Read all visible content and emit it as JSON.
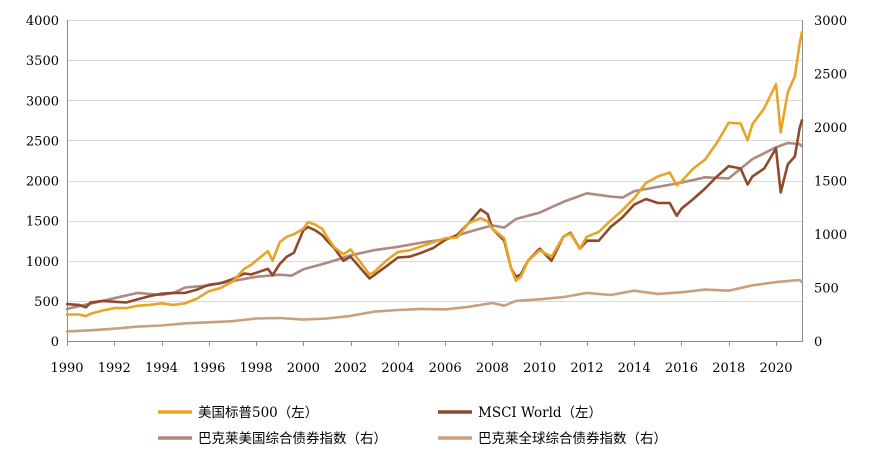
{
  "chart_data": {
    "type": "line",
    "x_range": [
      1990,
      2021.1
    ],
    "x_ticks": [
      1990,
      1992,
      1994,
      1996,
      1998,
      2000,
      2002,
      2004,
      2006,
      2008,
      2010,
      2012,
      2014,
      2016,
      2018,
      2020
    ],
    "x_tick_labels": [
      "1990",
      "1992",
      "1994",
      "1996",
      "1998",
      "2000",
      "2002",
      "2004",
      "2006",
      "2008",
      "2010",
      "2012",
      "2014",
      "2016",
      "2018",
      "2020"
    ],
    "y_left": {
      "range": [
        0,
        4000
      ],
      "ticks": [
        0,
        500,
        1000,
        1500,
        2000,
        2500,
        3000,
        3500,
        4000
      ],
      "tick_labels": [
        "0",
        "500",
        "1000",
        "1500",
        "2000",
        "2500",
        "3000",
        "3500",
        "4000"
      ]
    },
    "y_right": {
      "range": [
        0,
        3000
      ],
      "ticks": [
        0,
        500,
        1000,
        1500,
        2000,
        2500,
        3000
      ],
      "tick_labels": [
        "0",
        "500",
        "1000",
        "1500",
        "2000",
        "2500",
        "3000"
      ]
    },
    "grid": "horizontal",
    "legend_position": "bottom",
    "series": [
      {
        "name": "美国标普500（左）",
        "axis": "left",
        "color": "#E8A427",
        "x": [
          1990,
          1990.5,
          1990.8,
          1991,
          1991.5,
          1992,
          1992.5,
          1993,
          1993.5,
          1994,
          1994.5,
          1995,
          1995.5,
          1996,
          1996.5,
          1997,
          1997.5,
          1997.8,
          1998,
          1998.5,
          1998.7,
          1999,
          1999.3,
          1999.6,
          2000,
          2000.2,
          2000.5,
          2000.8,
          2001,
          2001.3,
          2001.7,
          2002,
          2002.5,
          2002.8,
          2003,
          2003.5,
          2004,
          2004.5,
          2005,
          2005.5,
          2006,
          2006.5,
          2007,
          2007.5,
          2007.8,
          2008,
          2008.5,
          2008.8,
          2009,
          2009.2,
          2009.5,
          2010,
          2010.5,
          2011,
          2011.3,
          2011.7,
          2012,
          2012.5,
          2013,
          2013.5,
          2014,
          2014.5,
          2015,
          2015.5,
          2015.8,
          2016,
          2016.5,
          2017,
          2017.5,
          2018,
          2018.5,
          2018.8,
          2019,
          2019.5,
          2020,
          2020.2,
          2020.5,
          2020.8,
          2021,
          2021.1
        ],
        "y": [
          330,
          330,
          310,
          340,
          380,
          410,
          410,
          440,
          450,
          470,
          450,
          470,
          530,
          620,
          660,
          740,
          900,
          950,
          1000,
          1120,
          1000,
          1230,
          1300,
          1330,
          1400,
          1480,
          1450,
          1400,
          1300,
          1170,
          1080,
          1140,
          950,
          830,
          860,
          1000,
          1110,
          1130,
          1180,
          1230,
          1280,
          1290,
          1470,
          1530,
          1490,
          1400,
          1280,
          900,
          750,
          800,
          1000,
          1130,
          1050,
          1300,
          1340,
          1150,
          1300,
          1360,
          1500,
          1630,
          1780,
          1970,
          2050,
          2100,
          1940,
          1990,
          2150,
          2260,
          2470,
          2720,
          2710,
          2500,
          2700,
          2900,
          3200,
          2600,
          3100,
          3300,
          3700,
          3850
        ]
      },
      {
        "name": "MSCI World（左）",
        "axis": "left",
        "color": "#8F4A2B",
        "x": [
          1990,
          1990.5,
          1990.8,
          1991,
          1991.5,
          1992,
          1992.5,
          1993,
          1993.5,
          1994,
          1994.5,
          1995,
          1995.5,
          1996,
          1996.5,
          1997,
          1997.5,
          1997.8,
          1998,
          1998.5,
          1998.7,
          1999,
          1999.3,
          1999.6,
          2000,
          2000.2,
          2000.5,
          2000.8,
          2001,
          2001.3,
          2001.7,
          2002,
          2002.5,
          2002.8,
          2003,
          2003.5,
          2004,
          2004.5,
          2005,
          2005.5,
          2006,
          2006.5,
          2007,
          2007.5,
          2007.8,
          2008,
          2008.5,
          2008.8,
          2009,
          2009.2,
          2009.5,
          2010,
          2010.5,
          2011,
          2011.3,
          2011.7,
          2012,
          2012.5,
          2013,
          2013.5,
          2014,
          2014.5,
          2015,
          2015.5,
          2015.8,
          2016,
          2016.5,
          2017,
          2017.5,
          2018,
          2018.5,
          2018.8,
          2019,
          2019.5,
          2020,
          2020.2,
          2020.5,
          2020.8,
          2021,
          2021.1
        ],
        "y": [
          460,
          450,
          420,
          480,
          500,
          490,
          480,
          520,
          560,
          590,
          600,
          600,
          640,
          700,
          720,
          770,
          840,
          830,
          850,
          900,
          820,
          960,
          1050,
          1100,
          1380,
          1420,
          1380,
          1320,
          1250,
          1160,
          1000,
          1050,
          880,
          780,
          820,
          930,
          1040,
          1050,
          1100,
          1160,
          1260,
          1320,
          1470,
          1640,
          1580,
          1400,
          1250,
          900,
          800,
          830,
          1000,
          1150,
          1000,
          1300,
          1350,
          1150,
          1250,
          1250,
          1420,
          1540,
          1700,
          1770,
          1720,
          1720,
          1560,
          1650,
          1770,
          1900,
          2050,
          2180,
          2150,
          1950,
          2050,
          2150,
          2400,
          1850,
          2200,
          2300,
          2650,
          2750
        ]
      },
      {
        "name": "巴克莱美国综合债券指数（右）",
        "axis": "right",
        "color": "#B08882",
        "x": [
          1990,
          1991,
          1992,
          1993,
          1994,
          1994.5,
          1995,
          1996,
          1997,
          1998,
          1999,
          1999.5,
          2000,
          2001,
          2002,
          2003,
          2004,
          2005,
          2006,
          2007,
          2008,
          2008.5,
          2009,
          2010,
          2011,
          2012,
          2013,
          2013.5,
          2014,
          2015,
          2016,
          2017,
          2018,
          2019,
          2020,
          2020.5,
          2021,
          2021.1
        ],
        "y": [
          300,
          350,
          400,
          450,
          430,
          450,
          500,
          520,
          560,
          600,
          620,
          610,
          670,
          730,
          800,
          850,
          880,
          920,
          950,
          1020,
          1080,
          1060,
          1140,
          1200,
          1300,
          1380,
          1350,
          1340,
          1400,
          1440,
          1480,
          1530,
          1520,
          1700,
          1810,
          1850,
          1840,
          1820
        ]
      },
      {
        "name": "巴克莱全球综合债券指数（右）",
        "axis": "right",
        "color": "#C9A07E",
        "x": [
          1990,
          1991,
          1992,
          1993,
          1994,
          1995,
          1996,
          1997,
          1998,
          1999,
          2000,
          2001,
          2002,
          2003,
          2004,
          2005,
          2006,
          2007,
          2008,
          2008.5,
          2009,
          2010,
          2011,
          2012,
          2013,
          2014,
          2015,
          2016,
          2017,
          2018,
          2019,
          2020,
          2020.5,
          2021,
          2021.1
        ],
        "y": [
          90,
          100,
          115,
          135,
          145,
          165,
          175,
          185,
          210,
          215,
          200,
          210,
          235,
          275,
          290,
          300,
          295,
          320,
          355,
          330,
          375,
          390,
          410,
          450,
          430,
          470,
          440,
          455,
          480,
          470,
          520,
          550,
          560,
          570,
          550
        ]
      }
    ],
    "legend": [
      {
        "label": "美国标普500（左）",
        "color": "#E8A427"
      },
      {
        "label": "MSCI World（左）",
        "color": "#8F4A2B"
      },
      {
        "label": "巴克莱美国综合债券指数（右）",
        "color": "#B08882"
      },
      {
        "label": "巴克莱全球综合债券指数（右）",
        "color": "#C9A07E"
      }
    ]
  }
}
